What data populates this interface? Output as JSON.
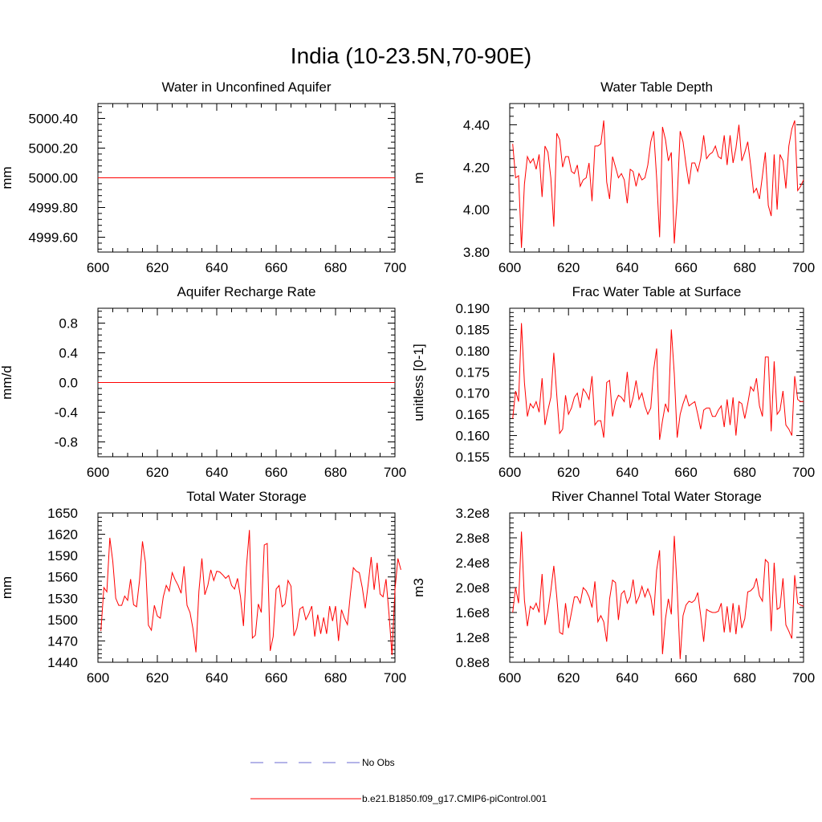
{
  "main_title": "India (10-23.5N,70-90E)",
  "colors": {
    "model": "#ff0000",
    "obs": "#6a6ad0",
    "axis": "#000000"
  },
  "legend": [
    {
      "label": "No Obs",
      "style": "dashed"
    },
    {
      "label": "b.e21.B1850.f09_g17.CMIP6-piControl.001",
      "style": "solid"
    }
  ],
  "chart_data": [
    {
      "type": "line",
      "title": "Water in Unconfined Aquifer",
      "ylabel": "mm",
      "xlim": [
        600,
        700
      ],
      "ylim": [
        4999.5,
        5000.5
      ],
      "xticks": [
        600,
        620,
        640,
        660,
        680,
        700
      ],
      "yticks": [
        4999.6,
        4999.8,
        5000.0,
        5000.2,
        5000.4
      ],
      "ytick_labels": [
        "4999.60",
        "4999.80",
        "5000.00",
        "5000.20",
        "5000.40"
      ],
      "x_start": 600,
      "series": [
        {
          "values": [
            5000,
            5000,
            5000,
            5000,
            5000,
            5000,
            5000,
            5000,
            5000,
            5000,
            5000,
            5000,
            5000,
            5000,
            5000,
            5000,
            5000,
            5000,
            5000,
            5000,
            5000,
            5000,
            5000,
            5000,
            5000,
            5000,
            5000,
            5000,
            5000,
            5000,
            5000,
            5000,
            5000,
            5000,
            5000,
            5000,
            5000,
            5000,
            5000,
            5000,
            5000,
            5000,
            5000,
            5000,
            5000,
            5000,
            5000,
            5000,
            5000,
            5000,
            5000,
            5000,
            5000,
            5000,
            5000,
            5000,
            5000,
            5000,
            5000,
            5000,
            5000,
            5000,
            5000,
            5000,
            5000,
            5000,
            5000,
            5000,
            5000,
            5000,
            5000,
            5000,
            5000,
            5000,
            5000,
            5000,
            5000,
            5000,
            5000,
            5000,
            5000,
            5000,
            5000,
            5000,
            5000,
            5000,
            5000,
            5000,
            5000,
            5000,
            5000,
            5000,
            5000,
            5000,
            5000,
            5000,
            5000,
            5000,
            5000,
            5000,
            5000
          ]
        }
      ]
    },
    {
      "type": "line",
      "title": "Water Table Depth",
      "ylabel": "m",
      "xlim": [
        600,
        700
      ],
      "ylim": [
        3.8,
        4.5
      ],
      "xticks": [
        600,
        620,
        640,
        660,
        680,
        700
      ],
      "yticks": [
        3.8,
        4.0,
        4.2,
        4.4
      ],
      "ytick_labels": [
        "3.80",
        "4.00",
        "4.20",
        "4.40"
      ],
      "x_start": 601,
      "series": [
        {
          "values": [
            4.31,
            4.15,
            4.16,
            3.82,
            4.12,
            4.25,
            4.22,
            4.24,
            4.19,
            4.26,
            4.06,
            4.3,
            4.27,
            4.15,
            3.92,
            4.36,
            4.33,
            4.2,
            4.25,
            4.25,
            4.18,
            4.17,
            4.21,
            4.11,
            4.14,
            4.15,
            4.22,
            4.04,
            4.3,
            4.3,
            4.31,
            4.42,
            4.13,
            4.05,
            4.25,
            4.2,
            4.15,
            4.17,
            4.14,
            4.03,
            4.19,
            4.18,
            4.11,
            4.17,
            4.14,
            4.15,
            4.21,
            4.32,
            4.37,
            4.15,
            3.87,
            4.39,
            4.33,
            4.23,
            4.27,
            3.84,
            4.05,
            4.37,
            4.32,
            4.21,
            4.12,
            4.22,
            4.22,
            4.18,
            4.24,
            4.35,
            4.24,
            4.26,
            4.27,
            4.3,
            4.25,
            4.24,
            4.35,
            4.21,
            4.35,
            4.22,
            4.29,
            4.4,
            4.23,
            4.27,
            4.32,
            4.21,
            4.08,
            4.1,
            4.05,
            4.16,
            4.27,
            4.02,
            3.97,
            4.26,
            4.0,
            4.26,
            4.23,
            4.1,
            4.3,
            4.38,
            4.42,
            4.09,
            4.11,
            4.14
          ]
        }
      ]
    },
    {
      "type": "line",
      "title": "Aquifer Recharge Rate",
      "ylabel": "mm/d",
      "xlim": [
        600,
        700
      ],
      "ylim": [
        -1.0,
        1.0
      ],
      "xticks": [
        600,
        620,
        640,
        660,
        680,
        700
      ],
      "yticks": [
        -0.8,
        -0.4,
        0.0,
        0.4,
        0.8
      ],
      "ytick_labels": [
        "-0.8",
        "-0.4",
        "0.0",
        "0.4",
        "0.8"
      ],
      "x_start": 600,
      "series": [
        {
          "values": [
            0,
            0,
            0,
            0,
            0,
            0,
            0,
            0,
            0,
            0,
            0,
            0,
            0,
            0,
            0,
            0,
            0,
            0,
            0,
            0,
            0,
            0,
            0,
            0,
            0,
            0,
            0,
            0,
            0,
            0,
            0,
            0,
            0,
            0,
            0,
            0,
            0,
            0,
            0,
            0,
            0,
            0,
            0,
            0,
            0,
            0,
            0,
            0,
            0,
            0,
            0,
            0,
            0,
            0,
            0,
            0,
            0,
            0,
            0,
            0,
            0,
            0,
            0,
            0,
            0,
            0,
            0,
            0,
            0,
            0,
            0,
            0,
            0,
            0,
            0,
            0,
            0,
            0,
            0,
            0,
            0,
            0,
            0,
            0,
            0,
            0,
            0,
            0,
            0,
            0,
            0,
            0,
            0,
            0,
            0,
            0,
            0,
            0,
            0,
            0,
            0
          ]
        }
      ]
    },
    {
      "type": "line",
      "title": "Frac Water Table at Surface",
      "ylabel": "unitless [0-1]",
      "xlim": [
        600,
        700
      ],
      "ylim": [
        0.155,
        0.19
      ],
      "xticks": [
        600,
        620,
        640,
        660,
        680,
        700
      ],
      "yticks": [
        0.155,
        0.16,
        0.165,
        0.17,
        0.175,
        0.18,
        0.185,
        0.19
      ],
      "ytick_labels": [
        "0.155",
        "0.160",
        "0.165",
        "0.170",
        "0.175",
        "0.180",
        "0.185",
        "0.190"
      ],
      "x_start": 601,
      "series": [
        {
          "values": [
            0.164,
            0.1705,
            0.168,
            0.1865,
            0.1725,
            0.1645,
            0.1675,
            0.1665,
            0.168,
            0.1655,
            0.1735,
            0.1625,
            0.166,
            0.169,
            0.1795,
            0.1695,
            0.1605,
            0.1615,
            0.1695,
            0.165,
            0.1665,
            0.169,
            0.17,
            0.1665,
            0.171,
            0.17,
            0.1685,
            0.174,
            0.1625,
            0.1635,
            0.1635,
            0.1595,
            0.1725,
            0.173,
            0.1645,
            0.168,
            0.1695,
            0.169,
            0.168,
            0.175,
            0.1665,
            0.169,
            0.173,
            0.1685,
            0.17,
            0.167,
            0.165,
            0.1665,
            0.1755,
            0.1805,
            0.159,
            0.1635,
            0.1675,
            0.1655,
            0.185,
            0.1745,
            0.1595,
            0.165,
            0.1675,
            0.1695,
            0.167,
            0.1675,
            0.168,
            0.165,
            0.1615,
            0.166,
            0.1665,
            0.1665,
            0.1645,
            0.1645,
            0.166,
            0.167,
            0.162,
            0.1685,
            0.1625,
            0.169,
            0.16,
            0.168,
            0.1675,
            0.164,
            0.1675,
            0.1715,
            0.1705,
            0.1735,
            0.167,
            0.1645,
            0.1785,
            0.1785,
            0.161,
            0.1775,
            0.165,
            0.166,
            0.1705,
            0.1625,
            0.1615,
            0.16,
            0.174,
            0.1685,
            0.168,
            0.168
          ]
        }
      ]
    },
    {
      "type": "line",
      "title": "Total Water Storage",
      "ylabel": "mm",
      "xlim": [
        600,
        700
      ],
      "ylim": [
        1440,
        1650
      ],
      "xticks": [
        600,
        620,
        640,
        660,
        680,
        700
      ],
      "yticks": [
        1440,
        1470,
        1500,
        1530,
        1560,
        1590,
        1620,
        1650
      ],
      "ytick_labels": [
        "1440",
        "1470",
        "1500",
        "1530",
        "1560",
        "1590",
        "1620",
        "1650"
      ],
      "x_start": 601,
      "series": [
        {
          "values": [
            1484,
            1545,
            1539,
            1615,
            1582,
            1530,
            1520,
            1520,
            1533,
            1527,
            1557,
            1521,
            1518,
            1555,
            1610,
            1580,
            1492,
            1485,
            1520,
            1505,
            1502,
            1532,
            1548,
            1540,
            1566,
            1556,
            1548,
            1537,
            1575,
            1520,
            1510,
            1487,
            1454,
            1540,
            1586,
            1535,
            1548,
            1570,
            1555,
            1568,
            1567,
            1563,
            1558,
            1562,
            1548,
            1543,
            1558,
            1532,
            1491,
            1574,
            1626,
            1474,
            1478,
            1522,
            1510,
            1605,
            1607,
            1456,
            1476,
            1543,
            1548,
            1518,
            1522,
            1555,
            1547,
            1477,
            1488,
            1515,
            1518,
            1500,
            1508,
            1519,
            1476,
            1507,
            1480,
            1503,
            1480,
            1519,
            1498,
            1519,
            1470,
            1514,
            1502,
            1493,
            1536,
            1573,
            1568,
            1566,
            1545,
            1516,
            1550,
            1588,
            1542,
            1580,
            1536,
            1532,
            1557,
            1508,
            1450,
            1542,
            1586,
            1570
          ]
        }
      ]
    },
    {
      "type": "line",
      "title": "River Channel Total Water Storage",
      "ylabel": "m3",
      "xlim": [
        600,
        700
      ],
      "ylim": [
        0.8,
        3.2
      ],
      "y_unit": "e8",
      "xticks": [
        600,
        620,
        640,
        660,
        680,
        700
      ],
      "yticks": [
        0.8,
        1.2,
        1.6,
        2.0,
        2.4,
        2.8,
        3.2
      ],
      "ytick_labels": [
        "0.8e8",
        "1.2e8",
        "1.6e8",
        "2.0e8",
        "2.4e8",
        "2.8e8",
        "3.2e8"
      ],
      "x_start": 601,
      "series": [
        {
          "values": [
            1.6,
            2.0,
            1.75,
            2.9,
            1.8,
            1.38,
            1.7,
            1.65,
            1.75,
            1.6,
            2.22,
            1.4,
            1.62,
            1.95,
            2.35,
            1.85,
            1.28,
            1.25,
            1.75,
            1.35,
            1.6,
            1.85,
            1.85,
            1.75,
            2.0,
            1.95,
            1.85,
            1.68,
            2.1,
            1.45,
            1.55,
            1.45,
            1.13,
            1.82,
            2.12,
            2.08,
            1.48,
            1.9,
            1.95,
            1.75,
            1.85,
            2.13,
            1.75,
            1.85,
            2.02,
            1.85,
            1.98,
            1.85,
            1.55,
            2.28,
            2.6,
            0.93,
            1.5,
            1.82,
            1.57,
            2.83,
            1.98,
            0.85,
            1.55,
            1.72,
            1.78,
            1.76,
            1.8,
            1.92,
            1.55,
            1.13,
            1.65,
            1.62,
            1.6,
            1.6,
            1.62,
            1.75,
            1.28,
            1.7,
            1.28,
            1.75,
            1.25,
            1.72,
            1.35,
            1.5,
            1.93,
            1.95,
            2.0,
            2.15,
            1.87,
            1.78,
            2.45,
            2.4,
            1.3,
            2.4,
            1.65,
            1.68,
            2.15,
            1.4,
            1.3,
            1.18,
            2.2,
            1.75,
            1.72,
            1.7
          ]
        }
      ]
    }
  ]
}
